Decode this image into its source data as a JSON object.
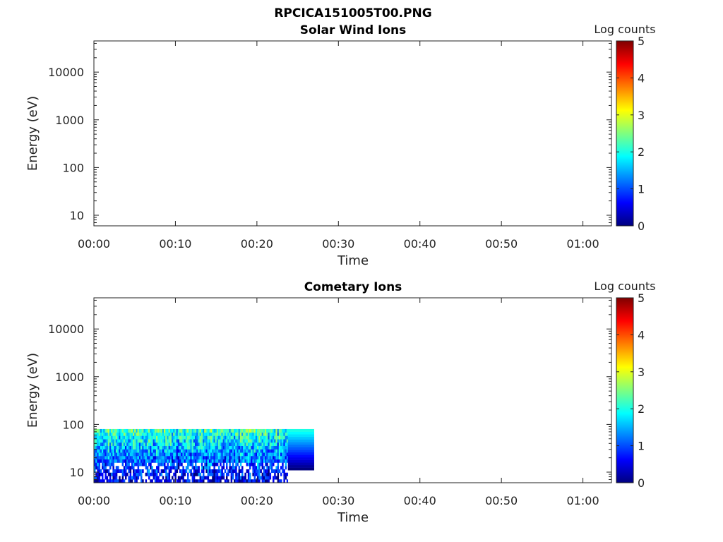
{
  "figure": {
    "title": "RPCICA151005T00.PNG"
  },
  "colormap": [
    "#00007f",
    "#0000ff",
    "#007fff",
    "#00ffff",
    "#7fff7f",
    "#ffff00",
    "#ff7f00",
    "#ff0000",
    "#7f0000"
  ],
  "chart_data": [
    {
      "type": "heatmap",
      "title": "Solar Wind Ions",
      "xlabel": "Time",
      "ylabel": "Energy (eV)",
      "x_ticks": [
        "00:00",
        "00:10",
        "00:20",
        "00:30",
        "00:40",
        "00:50",
        "01:00"
      ],
      "x_range_minutes": [
        0,
        63.5
      ],
      "y_scale": "log",
      "y_ticks": [
        "10",
        "100",
        "1000",
        "10000"
      ],
      "y_range": [
        6,
        45000
      ],
      "colorbar": {
        "label": "Log counts",
        "range": [
          0,
          5
        ],
        "ticks": [
          "0",
          "1",
          "2",
          "3",
          "4",
          "5"
        ]
      },
      "data_summary": "no data",
      "blocks": []
    },
    {
      "type": "heatmap",
      "title": "Cometary Ions",
      "xlabel": "Time",
      "ylabel": "Energy (eV)",
      "x_ticks": [
        "00:00",
        "00:10",
        "00:20",
        "00:30",
        "00:40",
        "00:50",
        "01:00"
      ],
      "x_range_minutes": [
        0,
        63.5
      ],
      "y_scale": "log",
      "y_ticks": [
        "10",
        "100",
        "1000",
        "10000"
      ],
      "y_range": [
        6,
        45000
      ],
      "colorbar": {
        "label": "Log counts",
        "range": [
          0,
          5
        ],
        "ticks": [
          "0",
          "1",
          "2",
          "3",
          "4",
          "5"
        ]
      },
      "data_summary": "Counts between ~6 and ~80 eV from 00:00 to ~00:27; high-count band (log ~1.5-2.3) near 30-80 eV, lower counts (log ~0.3-1.2) below ~30 eV; final interval 00:24-00:27 shows smooth energy gradient.",
      "blocks": [
        {
          "t_start": 0.0,
          "t_end": 23.8,
          "e_min": 6,
          "e_max": 80,
          "level_low": 0.4,
          "level_high": 2.1,
          "style": "noisy"
        },
        {
          "t_start": 23.8,
          "t_end": 27.0,
          "e_min": 11,
          "e_max": 80,
          "level_low": 0.0,
          "level_high": 2.0,
          "style": "smooth"
        }
      ]
    }
  ]
}
